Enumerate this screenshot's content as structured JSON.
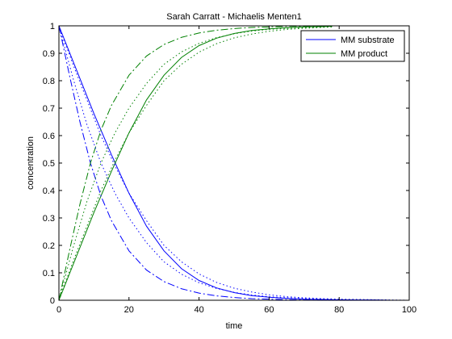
{
  "chart_data": {
    "type": "line",
    "title": "Sarah Carratt - Michaelis Menten1",
    "xlabel": "time",
    "ylabel": "concentration",
    "xlim": [
      0,
      100
    ],
    "ylim": [
      0,
      1
    ],
    "xticks": [
      "0",
      "20",
      "40",
      "60",
      "80",
      "100"
    ],
    "yticks": [
      "0",
      "0.1",
      "0.2",
      "0.3",
      "0.4",
      "0.5",
      "0.6",
      "0.7",
      "0.8",
      "0.9",
      "1"
    ],
    "grid": false,
    "legend_position": "top-right",
    "legend": [
      "MM substrate",
      "MM product"
    ],
    "series": [
      {
        "name": "MM substrate",
        "color": "#0000ff",
        "dash": "solid",
        "x": [
          0,
          5,
          10,
          15,
          20,
          25,
          30,
          35,
          40,
          45,
          50,
          55,
          60,
          65,
          70,
          75,
          80,
          85,
          90,
          95,
          100
        ],
        "y": [
          1.0,
          0.84,
          0.68,
          0.53,
          0.39,
          0.27,
          0.18,
          0.115,
          0.072,
          0.045,
          0.028,
          0.017,
          0.011,
          0.007,
          0.004,
          0.003,
          0.002,
          0.001,
          0.001,
          0.0,
          0.0
        ]
      },
      {
        "name": "MM product",
        "color": "#008000",
        "dash": "solid",
        "x": [
          0,
          5,
          10,
          15,
          20,
          25,
          30,
          35,
          40,
          45,
          50,
          55,
          60,
          65,
          70,
          75,
          78
        ],
        "y": [
          0.0,
          0.16,
          0.32,
          0.47,
          0.61,
          0.73,
          0.82,
          0.885,
          0.928,
          0.955,
          0.972,
          0.983,
          0.989,
          0.993,
          0.996,
          0.997,
          0.998
        ]
      },
      {
        "color": "#0000ff",
        "dash": "dashdot",
        "x": [
          0,
          3,
          6,
          9,
          12,
          15,
          20,
          25,
          30,
          35,
          40,
          45,
          50,
          55,
          60,
          65,
          70,
          75,
          80,
          85,
          90,
          95,
          100
        ],
        "y": [
          1.0,
          0.82,
          0.65,
          0.5,
          0.38,
          0.29,
          0.18,
          0.11,
          0.068,
          0.042,
          0.026,
          0.016,
          0.01,
          0.006,
          0.004,
          0.002,
          0.001,
          0.001,
          0.0,
          0.0,
          0.0,
          0.0,
          0.0
        ]
      },
      {
        "color": "#008000",
        "dash": "dashdot",
        "x": [
          0,
          3,
          6,
          9,
          12,
          15,
          20,
          25,
          30,
          35,
          40,
          45,
          50,
          55,
          60,
          65,
          70,
          75,
          78
        ],
        "y": [
          0.0,
          0.18,
          0.35,
          0.5,
          0.62,
          0.71,
          0.82,
          0.89,
          0.932,
          0.958,
          0.974,
          0.984,
          0.99,
          0.994,
          0.996,
          0.998,
          0.999,
          0.999,
          1.0
        ]
      },
      {
        "color": "#0000ff",
        "dash": "dotted",
        "x": [
          0,
          4,
          8,
          12,
          16,
          20,
          25,
          30,
          35,
          40,
          45,
          50,
          55,
          60,
          65,
          70,
          75,
          80,
          85,
          90,
          95,
          100
        ],
        "y": [
          1.0,
          0.81,
          0.64,
          0.5,
          0.39,
          0.3,
          0.21,
          0.14,
          0.095,
          0.064,
          0.043,
          0.029,
          0.019,
          0.013,
          0.009,
          0.006,
          0.004,
          0.002,
          0.001,
          0.001,
          0.0,
          0.0
        ]
      },
      {
        "color": "#008000",
        "dash": "dotted",
        "x": [
          0,
          4,
          8,
          12,
          16,
          20,
          25,
          30,
          35,
          40,
          45,
          50,
          55,
          60,
          65,
          70,
          75,
          78
        ],
        "y": [
          0.0,
          0.19,
          0.36,
          0.5,
          0.61,
          0.7,
          0.79,
          0.86,
          0.905,
          0.936,
          0.957,
          0.971,
          0.981,
          0.987,
          0.991,
          0.994,
          0.996,
          0.997
        ]
      },
      {
        "color": "#0000ff",
        "dash": "dotted",
        "x": [
          0,
          4,
          8,
          12,
          16,
          20,
          25,
          30,
          35,
          40,
          45,
          50,
          55,
          60,
          65,
          70,
          75,
          80,
          85,
          90,
          95,
          100
        ],
        "y": [
          1.0,
          0.86,
          0.73,
          0.6,
          0.49,
          0.39,
          0.29,
          0.2,
          0.14,
          0.096,
          0.065,
          0.044,
          0.03,
          0.02,
          0.013,
          0.009,
          0.006,
          0.004,
          0.003,
          0.002,
          0.001,
          0.0
        ]
      },
      {
        "color": "#008000",
        "dash": "dotted",
        "x": [
          0,
          4,
          8,
          12,
          16,
          20,
          25,
          30,
          35,
          40,
          45,
          50,
          55,
          60,
          65,
          70,
          75,
          78
        ],
        "y": [
          0.0,
          0.14,
          0.27,
          0.4,
          0.51,
          0.61,
          0.71,
          0.8,
          0.86,
          0.904,
          0.935,
          0.956,
          0.97,
          0.98,
          0.987,
          0.991,
          0.994,
          0.996
        ]
      }
    ]
  }
}
